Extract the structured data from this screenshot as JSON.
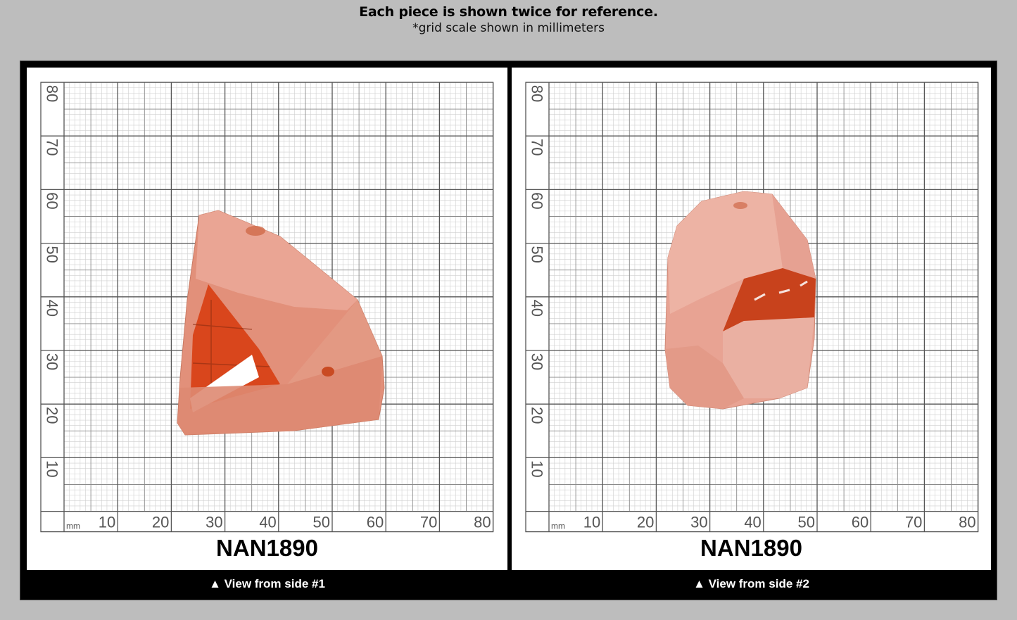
{
  "header": {
    "title": "Each piece is shown twice for reference.",
    "subtitle": "*grid scale shown in millimeters"
  },
  "grid": {
    "unit_label": "mm",
    "x_ticks": [
      "10",
      "20",
      "30",
      "40",
      "50",
      "60",
      "70",
      "80"
    ],
    "y_ticks": [
      "80",
      "70",
      "60",
      "50",
      "40",
      "30",
      "20",
      "10"
    ]
  },
  "views": [
    {
      "sku": "NAN1890",
      "caption": "▲ View from side #1",
      "stone_colors": {
        "body": "#e2907a",
        "frost": "#e9a898",
        "window": "#d9461c",
        "highlight": "#ffffff"
      }
    },
    {
      "sku": "NAN1890",
      "caption": "▲ View from side #2",
      "stone_colors": {
        "body": "#e8a393",
        "frost": "#efb8aa",
        "window": "#c8421c",
        "highlight": "#ffffff"
      }
    }
  ],
  "colors": {
    "background": "#bdbdbd",
    "frame": "#000000",
    "panel": "#ffffff",
    "grid_major": "#555555",
    "grid_minor": "#cfcfcf"
  }
}
